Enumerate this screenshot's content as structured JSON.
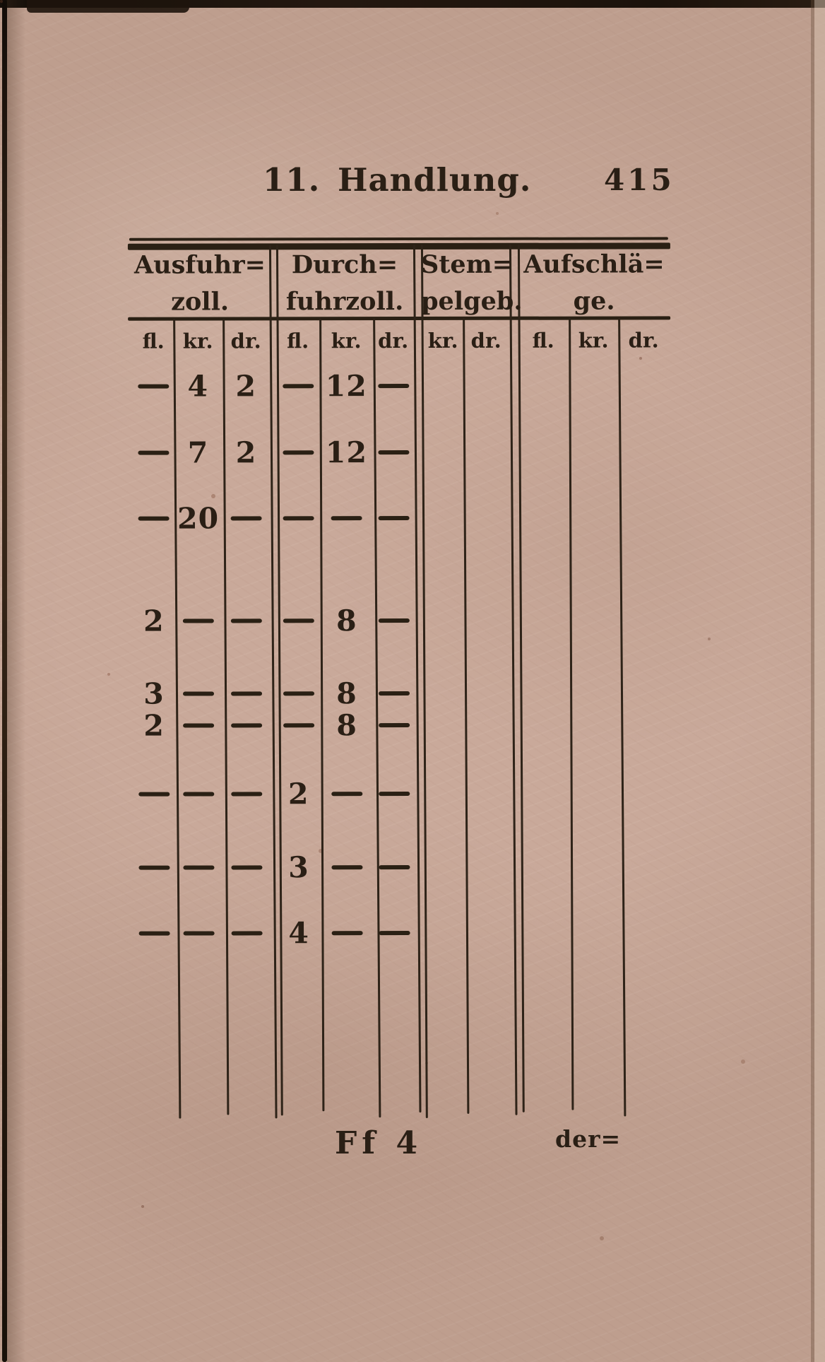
{
  "colors": {
    "paper": "#c9a99a",
    "ink": "#2a1f15",
    "book_edge": "#1d130c"
  },
  "page": {
    "header": {
      "title": "11. Handlung.",
      "page_number": "415"
    },
    "footer": {
      "signature": "Ff 4",
      "catchword": "der="
    }
  },
  "table": {
    "dash": "—",
    "groups": [
      {
        "label_lines": [
          "Ausfuhr=",
          "zoll."
        ],
        "columns": [
          "fl.",
          "kr.",
          "dr."
        ]
      },
      {
        "label_lines": [
          "Durch=",
          "fuhrzoll."
        ],
        "columns": [
          "fl.",
          "kr.",
          "dr."
        ]
      },
      {
        "label_lines": [
          "Stem=",
          "pelgeb."
        ],
        "columns": [
          "kr.",
          "dr."
        ]
      },
      {
        "label_lines": [
          "Aufschlä=",
          "ge."
        ],
        "columns": [
          "fl.",
          "kr.",
          "dr."
        ]
      }
    ],
    "unit_row": [
      "fl.",
      "kr.",
      "dr.",
      "fl.",
      "kr.",
      "dr.",
      "kr.",
      "dr.",
      "fl.",
      "kr.",
      "dr."
    ],
    "rows": [
      {
        "cells": [
          "—",
          "4",
          "2",
          "—",
          "12",
          "—",
          "",
          "",
          "",
          "",
          ""
        ]
      },
      {
        "cells": [
          "—",
          "7",
          "2",
          "—",
          "12",
          "—",
          "",
          "",
          "",
          "",
          ""
        ]
      },
      {
        "cells": [
          "—",
          "20",
          "—",
          "—",
          "—",
          "—",
          "",
          "",
          "",
          "",
          ""
        ]
      },
      {
        "cells": [
          "2",
          "—",
          "—",
          "—",
          "8",
          "—",
          "",
          "",
          "",
          "",
          ""
        ]
      },
      {
        "cells": [
          "3",
          "—",
          "—",
          "—",
          "8",
          "—",
          "",
          "",
          "",
          "",
          ""
        ]
      },
      {
        "cells": [
          "2",
          "—",
          "—",
          "—",
          "8",
          "—",
          "",
          "",
          "",
          "",
          ""
        ]
      },
      {
        "cells": [
          "—",
          "—",
          "—",
          "2",
          "—",
          "—",
          "",
          "",
          "",
          "",
          ""
        ]
      },
      {
        "cells": [
          "—",
          "—",
          "—",
          "3",
          "—",
          "—",
          "",
          "",
          "",
          "",
          ""
        ]
      },
      {
        "cells": [
          "—",
          "—",
          "—",
          "4",
          "—",
          "—",
          "",
          "",
          "",
          "",
          ""
        ]
      }
    ]
  }
}
